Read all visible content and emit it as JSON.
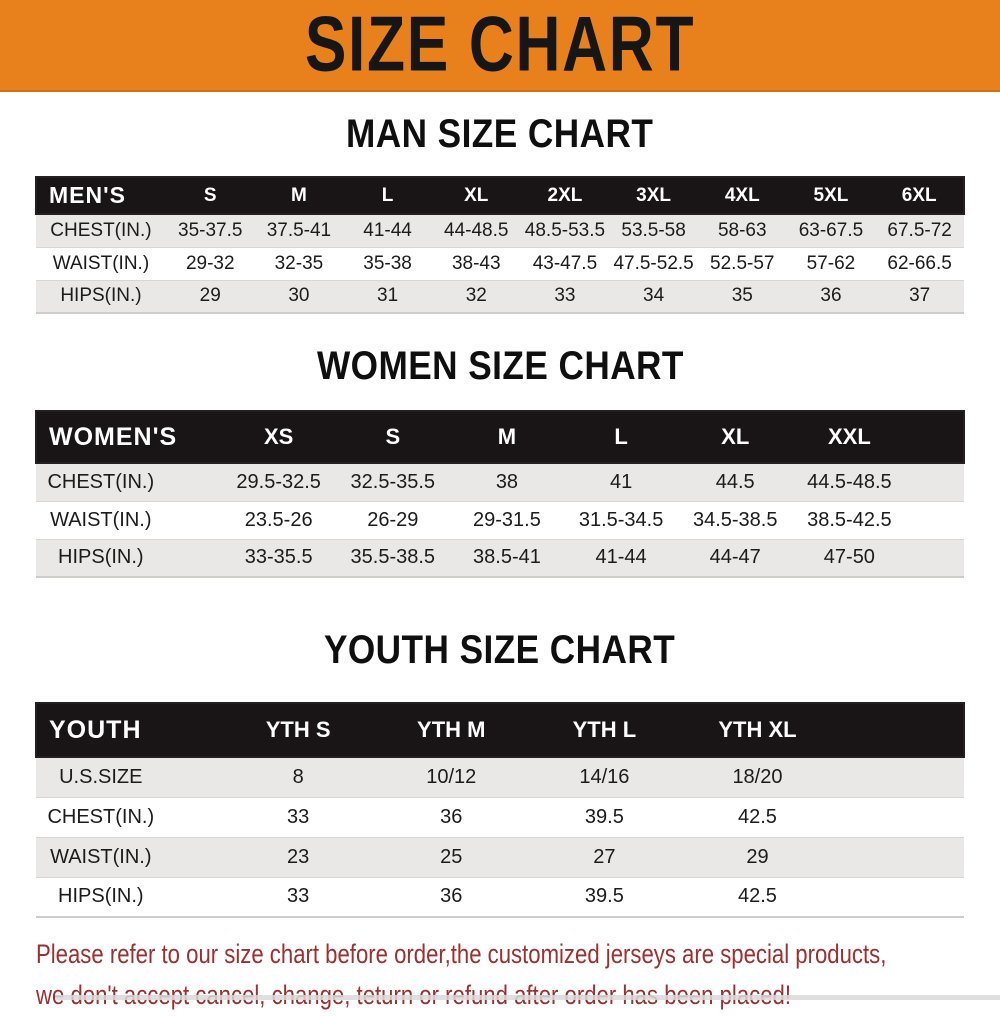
{
  "banner": {
    "title": "SIZE CHART"
  },
  "colors": {
    "banner_bg": "#E8811B",
    "table_header_bg": "#191415",
    "row_stripe": "#E9E8E6",
    "notice_text": "#9C2F2F"
  },
  "chart_data": [
    {
      "type": "table",
      "title": "MAN SIZE CHART",
      "header_label": "MEN'S",
      "columns": [
        "S",
        "M",
        "L",
        "XL",
        "2XL",
        "3XL",
        "4XL",
        "5XL",
        "6XL"
      ],
      "rows": [
        {
          "label": "CHEST(IN.)",
          "values": [
            "35-37.5",
            "37.5-41",
            "41-44",
            "44-48.5",
            "48.5-53.5",
            "53.5-58",
            "58-63",
            "63-67.5",
            "67.5-72"
          ]
        },
        {
          "label": "WAIST(IN.)",
          "values": [
            "29-32",
            "32-35",
            "35-38",
            "38-43",
            "43-47.5",
            "47.5-52.5",
            "52.5-57",
            "57-62",
            "62-66.5"
          ]
        },
        {
          "label": "HIPS(IN.)",
          "values": [
            "29",
            "30",
            "31",
            "32",
            "33",
            "34",
            "35",
            "36",
            "37"
          ]
        }
      ]
    },
    {
      "type": "table",
      "title": "WOMEN SIZE CHART",
      "header_label": "WOMEN'S",
      "columns": [
        "XS",
        "S",
        "M",
        "L",
        "XL",
        "XXL"
      ],
      "rows": [
        {
          "label": "CHEST(IN.)",
          "values": [
            "29.5-32.5",
            "32.5-35.5",
            "38",
            "41",
            "44.5",
            "44.5-48.5"
          ]
        },
        {
          "label": "WAIST(IN.)",
          "values": [
            "23.5-26",
            "26-29",
            "29-31.5",
            "31.5-34.5",
            "34.5-38.5",
            "38.5-42.5"
          ]
        },
        {
          "label": "HIPS(IN.)",
          "values": [
            "33-35.5",
            "35.5-38.5",
            "38.5-41",
            "41-44",
            "44-47",
            "47-50"
          ]
        }
      ]
    },
    {
      "type": "table",
      "title": "YOUTH SIZE CHART",
      "header_label": "YOUTH",
      "columns": [
        "YTH S",
        "YTH M",
        "YTH L",
        "YTH XL"
      ],
      "rows": [
        {
          "label": "U.S.SIZE",
          "values": [
            "8",
            "10/12",
            "14/16",
            "18/20"
          ]
        },
        {
          "label": "CHEST(IN.)",
          "values": [
            "33",
            "36",
            "39.5",
            "42.5"
          ]
        },
        {
          "label": "WAIST(IN.)",
          "values": [
            "23",
            "25",
            "27",
            "29"
          ]
        },
        {
          "label": "HIPS(IN.)",
          "values": [
            "33",
            "36",
            "39.5",
            "42.5"
          ]
        }
      ]
    }
  ],
  "footer": {
    "line1": "Please refer to our size chart before order,the customized jerseys are special products,",
    "line2": "we don't accept cancel, change, teturn or refund after order has been placed!"
  }
}
